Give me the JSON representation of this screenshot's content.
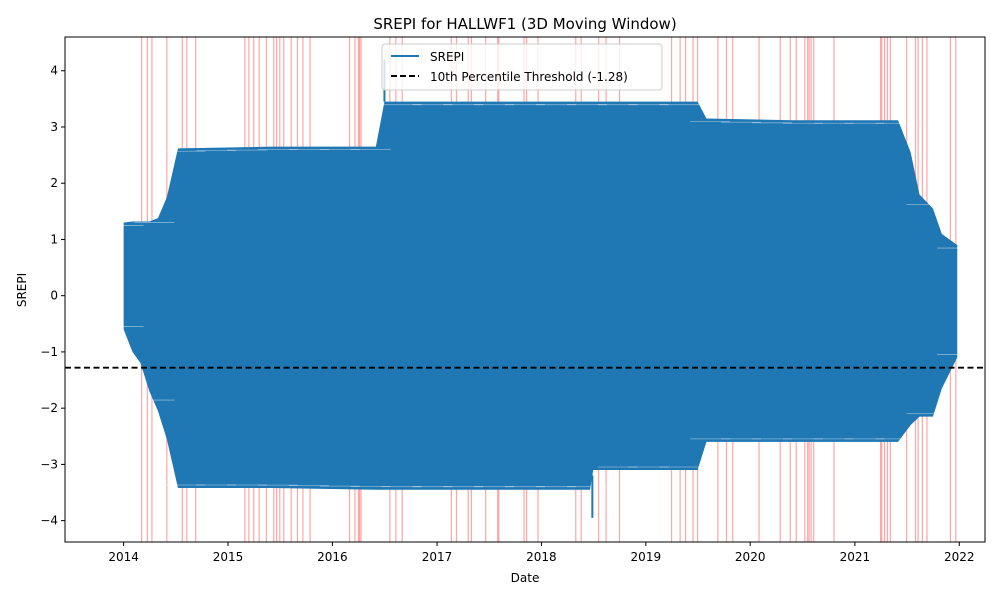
{
  "chart_data": {
    "type": "line",
    "title": "SREPI for HALLWF1 (3D Moving Window)",
    "xlabel": "Date",
    "ylabel": "SREPI",
    "x_ticks": [
      "2014",
      "2015",
      "2016",
      "2017",
      "2018",
      "2019",
      "2020",
      "2021",
      "2022"
    ],
    "y_ticks": [
      "−4",
      "−3",
      "−2",
      "−1",
      "0",
      "1",
      "2",
      "3",
      "4"
    ],
    "xlim": [
      "2013-06-10",
      "2022-04-01"
    ],
    "ylim": [
      -4.38,
      4.6
    ],
    "grid": false,
    "legend_position": "upper-center",
    "threshold": {
      "value": -1.28,
      "label": "10th Percentile Threshold (-1.28)",
      "color": "#000000",
      "style": "dashed"
    },
    "series": [
      {
        "name": "SREPI",
        "color": "#1f77b4",
        "note_envelope": "dense oscillating series; band spans upper and lower envelopes over time",
        "points": [
          {
            "x": "2014-01-01",
            "lo": -0.6,
            "hi": 1.3
          },
          {
            "x": "2014-02-01",
            "lo": -1.0,
            "hi": 1.32
          },
          {
            "x": "2014-03-01",
            "lo": -1.2,
            "hi": 1.32
          },
          {
            "x": "2014-04-01",
            "lo": -1.7,
            "hi": 1.32
          },
          {
            "x": "2014-05-01",
            "lo": -2.05,
            "hi": 1.38
          },
          {
            "x": "2014-06-01",
            "lo": -2.55,
            "hi": 1.75
          },
          {
            "x": "2014-07-10",
            "lo": -3.42,
            "hi": 2.62
          },
          {
            "x": "2015-06-01",
            "lo": -3.42,
            "hi": 2.65
          },
          {
            "x": "2016-06-01",
            "lo": -3.45,
            "hi": 2.65
          },
          {
            "x": "2016-07-01",
            "lo": -3.45,
            "hi": 3.45
          },
          {
            "x": "2017-06-01",
            "lo": -3.45,
            "hi": 3.45
          },
          {
            "x": "2018-06-20",
            "lo": -3.45,
            "hi": 3.45
          },
          {
            "x": "2018-07-01",
            "lo": -3.1,
            "hi": 3.45
          },
          {
            "x": "2019-07-01",
            "lo": -3.1,
            "hi": 3.45
          },
          {
            "x": "2019-08-01",
            "lo": -2.6,
            "hi": 3.15
          },
          {
            "x": "2020-06-01",
            "lo": -2.6,
            "hi": 3.12
          },
          {
            "x": "2021-06-01",
            "lo": -2.6,
            "hi": 3.12
          },
          {
            "x": "2021-07-15",
            "lo": -2.3,
            "hi": 2.55
          },
          {
            "x": "2021-08-15",
            "lo": -2.15,
            "hi": 1.8
          },
          {
            "x": "2021-10-01",
            "lo": -2.15,
            "hi": 1.55
          },
          {
            "x": "2021-11-01",
            "lo": -1.65,
            "hi": 1.1
          },
          {
            "x": "2021-12-25",
            "lo": -1.1,
            "hi": 0.9
          }
        ],
        "spikes": [
          {
            "x": "2016-07-01",
            "y": 4.2
          },
          {
            "x": "2018-06-28",
            "y": -3.95
          }
        ]
      }
    ],
    "drought_markers": {
      "color": "#ff0000",
      "dates": [
        "2014-03-05",
        "2014-03-25",
        "2014-04-10",
        "2014-06-01",
        "2014-07-25",
        "2014-08-10",
        "2014-09-10",
        "2015-03-01",
        "2015-03-15",
        "2015-04-01",
        "2015-04-20",
        "2015-05-15",
        "2015-06-10",
        "2015-06-20",
        "2015-07-01",
        "2015-07-15",
        "2015-08-10",
        "2015-09-01",
        "2015-09-20",
        "2015-10-15",
        "2016-03-01",
        "2016-03-20",
        "2016-04-01",
        "2016-04-05",
        "2016-04-10",
        "2016-07-20",
        "2016-08-10",
        "2016-09-01",
        "2017-02-20",
        "2017-03-10",
        "2017-04-20",
        "2017-05-01",
        "2017-06-20",
        "2017-08-01",
        "2017-08-05",
        "2017-11-01",
        "2017-11-10",
        "2017-12-20",
        "2018-05-01",
        "2018-05-20",
        "2018-07-20",
        "2018-08-15",
        "2018-10-01",
        "2019-04-01",
        "2019-05-01",
        "2019-05-20",
        "2019-06-15",
        "2019-07-01",
        "2019-09-10",
        "2019-10-10",
        "2019-11-01",
        "2020-02-01",
        "2020-04-15",
        "2020-05-20",
        "2020-06-10",
        "2020-07-10",
        "2020-07-20",
        "2020-07-25",
        "2020-08-01",
        "2020-08-10",
        "2020-10-20",
        "2021-04-01",
        "2021-04-05",
        "2021-04-15",
        "2021-04-25",
        "2021-05-05",
        "2021-07-01",
        "2021-08-01",
        "2021-08-10",
        "2021-08-25",
        "2021-09-10",
        "2021-12-01",
        "2021-12-20"
      ]
    }
  }
}
